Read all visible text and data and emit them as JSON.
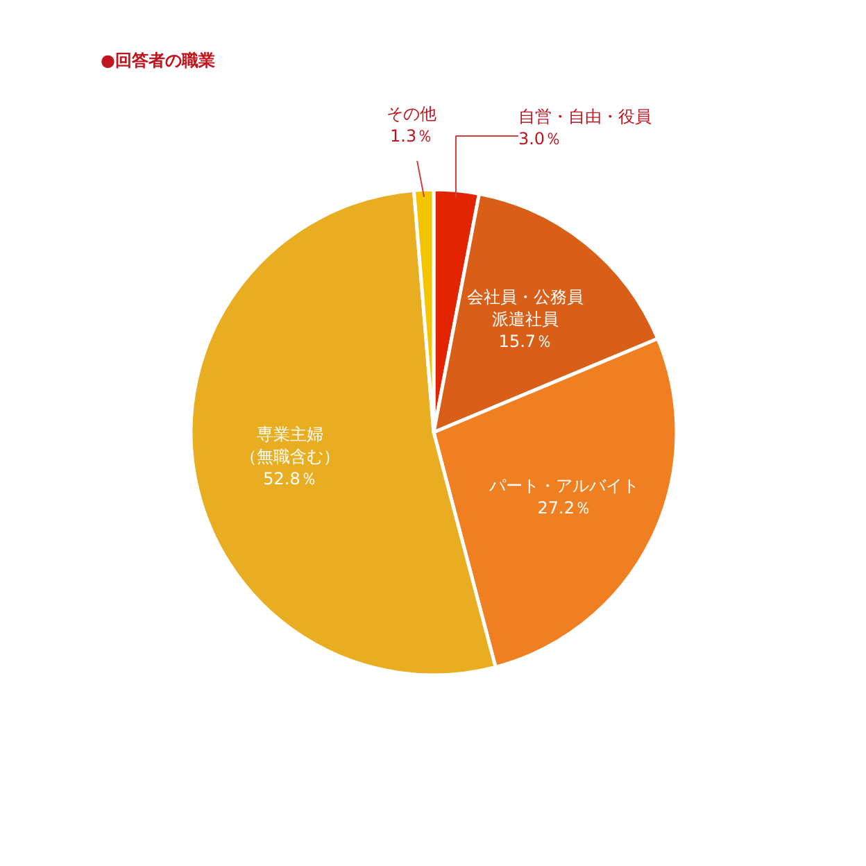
{
  "chart_data": {
    "type": "pie",
    "title": "●回答者の職業",
    "categories": [
      "自営・自由・役員",
      "会社員・公務員派遣社員",
      "パート・アルバイト",
      "専業主婦（無職含む）",
      "その他"
    ],
    "values": [
      3.0,
      15.7,
      27.2,
      52.8,
      1.3
    ],
    "colors": [
      "#e32400",
      "#d95e17",
      "#ef7f21",
      "#e9ad22",
      "#f3c400"
    ],
    "value_labels": [
      "3.0％",
      "15.7％",
      "27.2％",
      "52.8％",
      "1.3％"
    ]
  }
}
